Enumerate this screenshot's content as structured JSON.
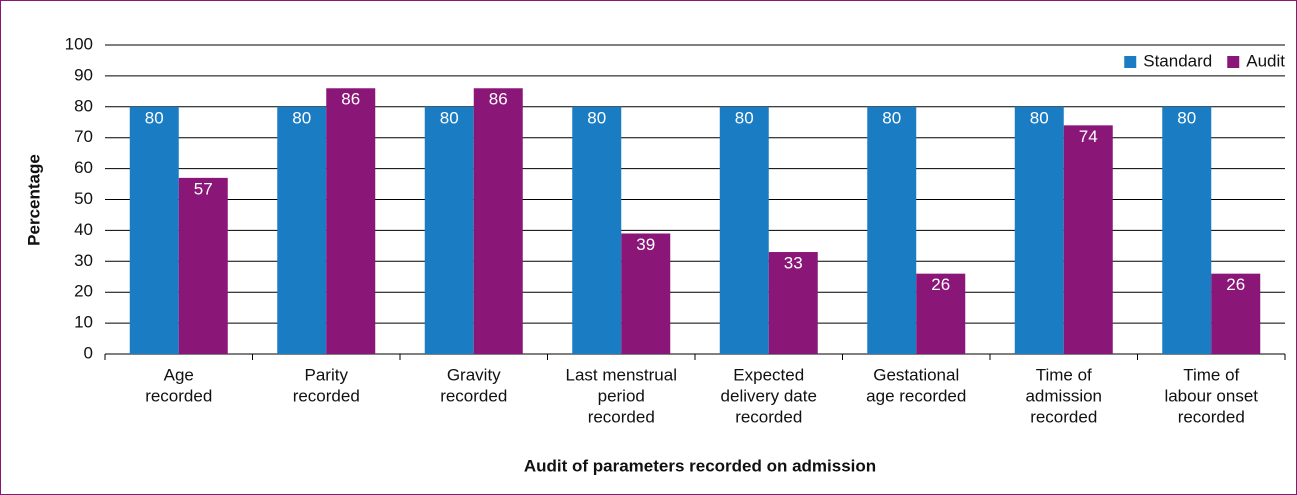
{
  "chart_data": {
    "type": "bar",
    "x_label": "Audit of parameters recorded on admission",
    "y_label": "Percentage",
    "categories": [
      [
        "Age",
        "recorded"
      ],
      [
        "Parity",
        "recorded"
      ],
      [
        "Gravity",
        "recorded"
      ],
      [
        "Last menstrual",
        "period",
        "recorded"
      ],
      [
        "Expected",
        "delivery date",
        "recorded"
      ],
      [
        "Gestational",
        "age recorded"
      ],
      [
        "Time of",
        "admission",
        "recorded"
      ],
      [
        "Time of",
        "labour onset",
        "recorded"
      ]
    ],
    "series": [
      {
        "name": "Standard",
        "color": "#1a7dc4",
        "values": [
          80,
          80,
          80,
          80,
          80,
          80,
          80,
          80
        ]
      },
      {
        "name": "Audit",
        "color": "#8a1778",
        "values": [
          57,
          86,
          86,
          39,
          33,
          26,
          74,
          26
        ]
      }
    ],
    "ylim": [
      0,
      100
    ],
    "yticks": [
      0,
      10,
      20,
      30,
      40,
      50,
      60,
      70,
      80,
      90,
      100
    ],
    "grid": true,
    "legend": "top-right"
  }
}
